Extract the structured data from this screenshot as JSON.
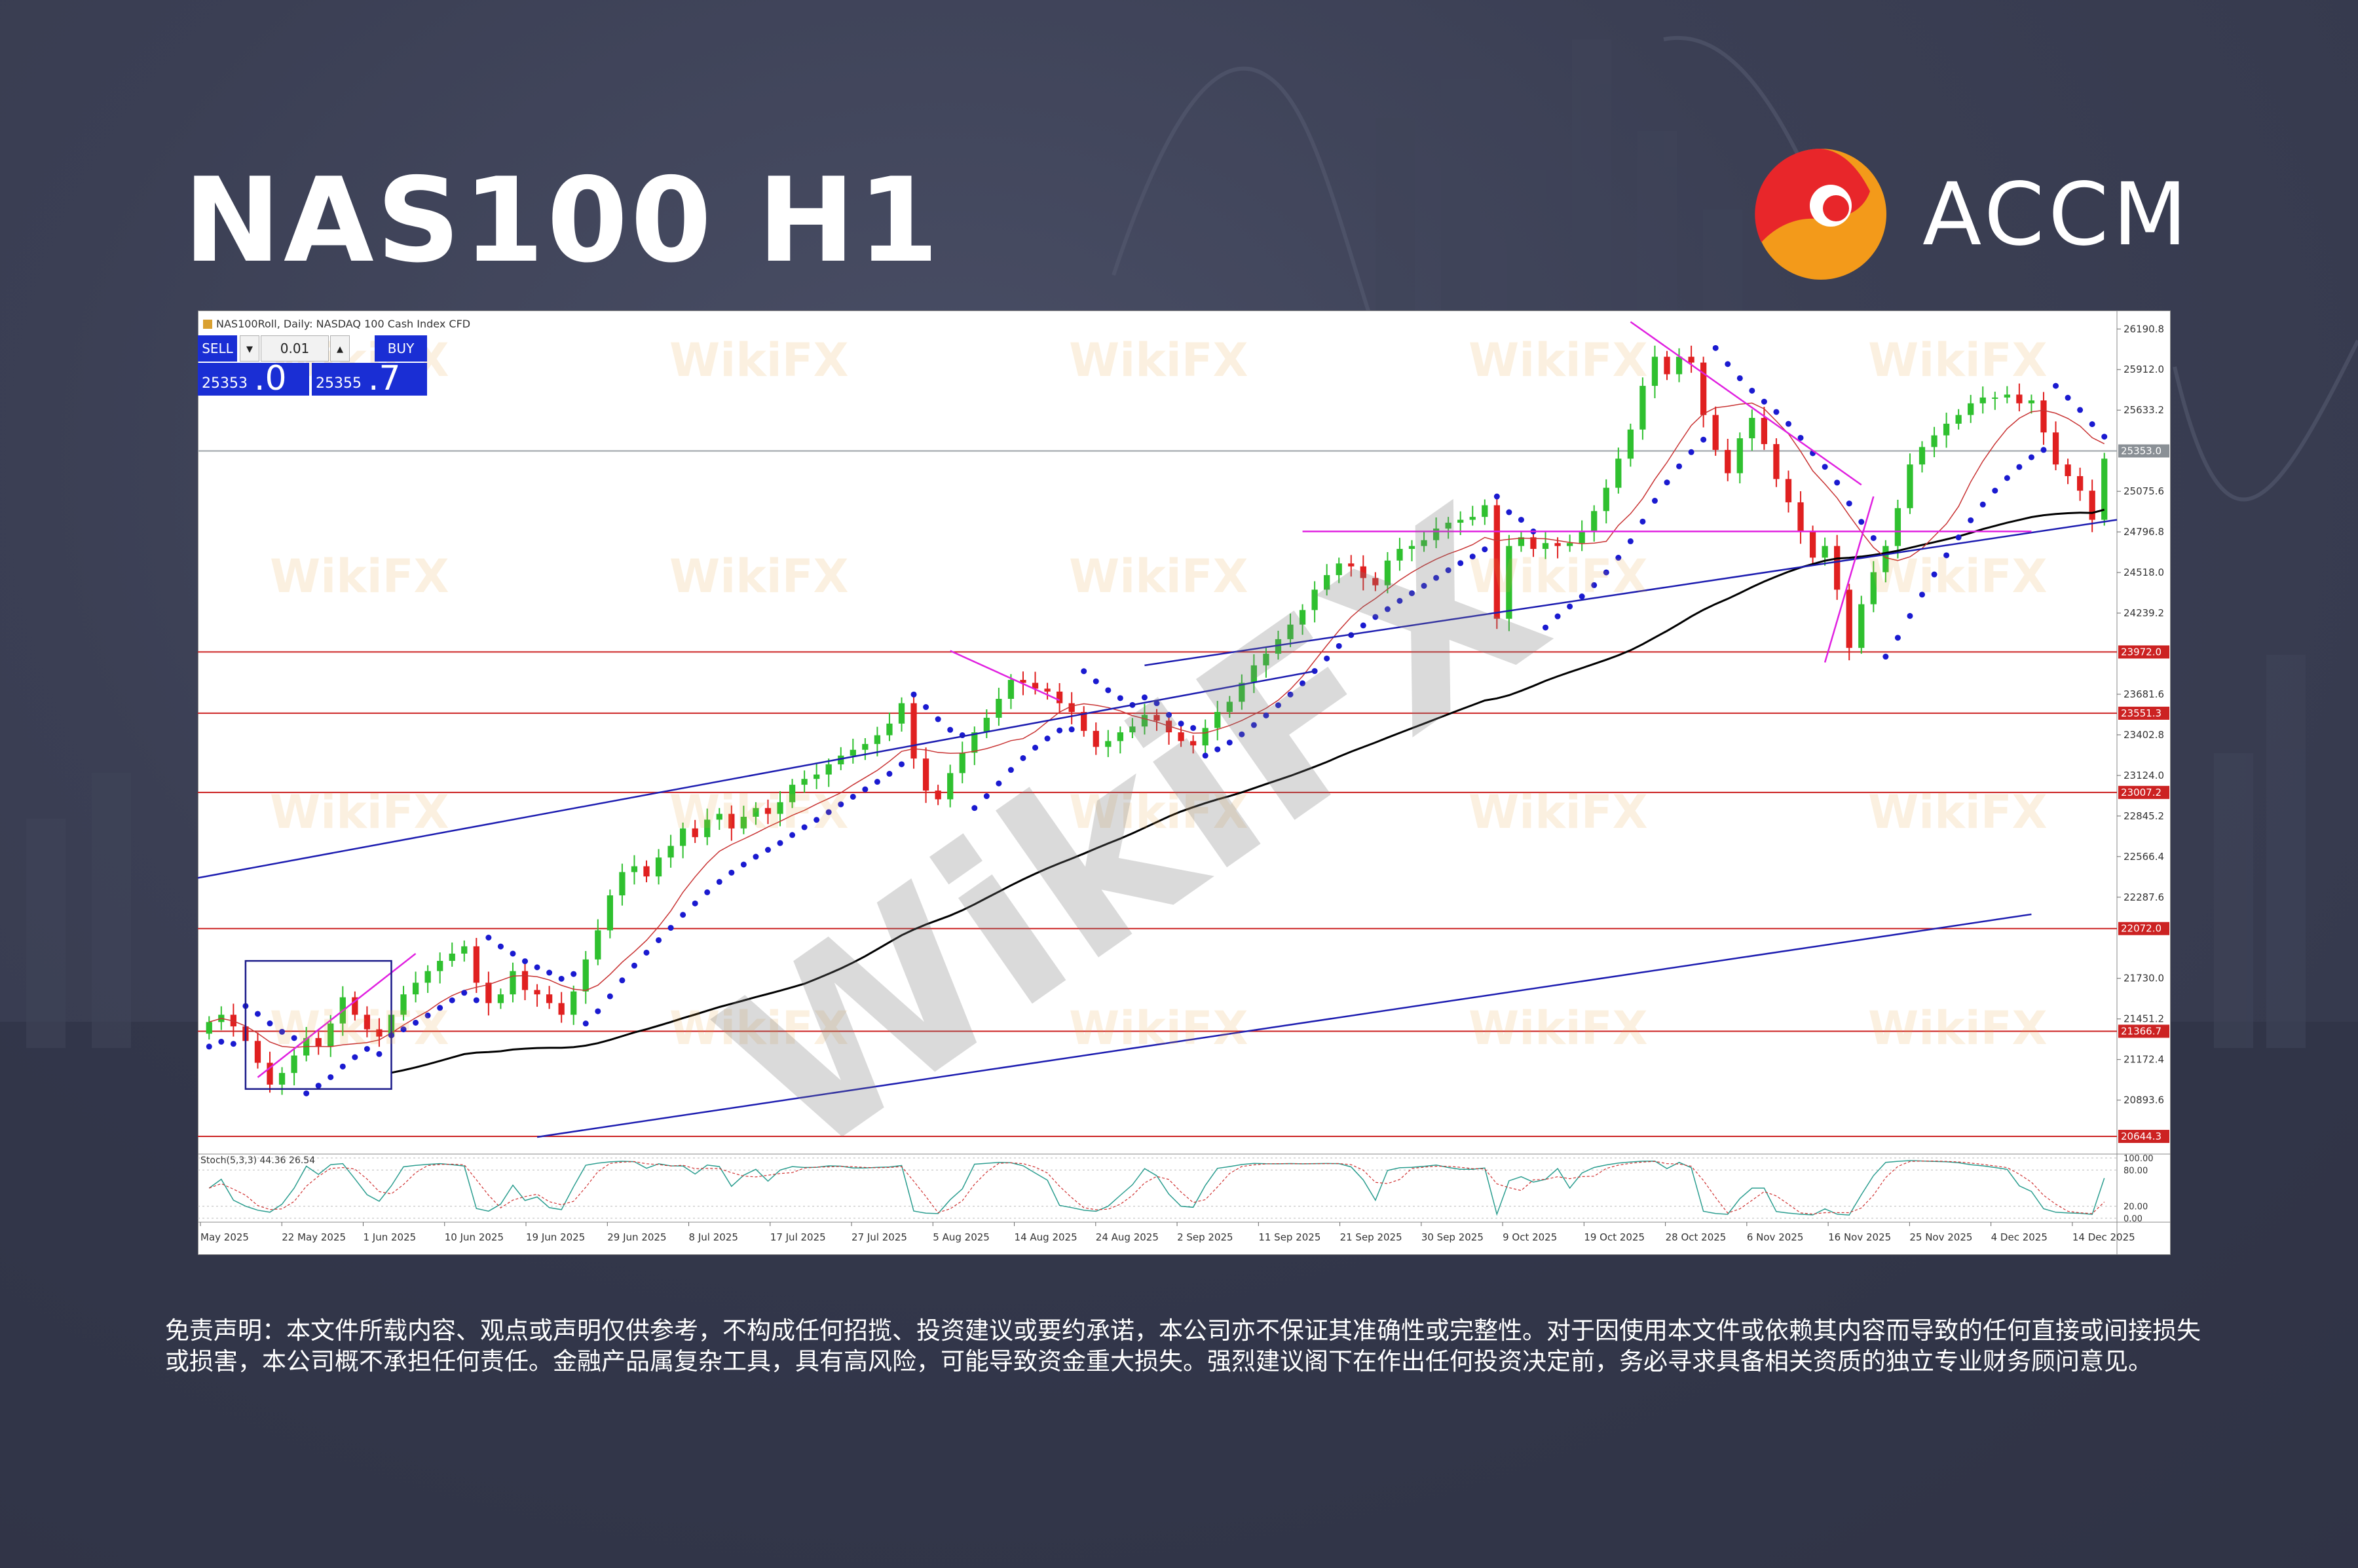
{
  "header": {
    "title": "NAS100 H1",
    "brand": "ACCM"
  },
  "panel": {
    "sell_label": "SELL",
    "buy_label": "BUY",
    "lot": "0.01",
    "sell_small": "25353",
    "sell_big": ".0",
    "buy_small": "25355",
    "buy_big": ".7"
  },
  "disclaimer": "免责声明：本文件所载内容、观点或声明仅供参考，不构成任何招揽、投资建议或要约承诺，本公司亦不保证其准确性或完整性。对于因使用本文件或依赖其内容而导致的任何直接或间接损失或损害，本公司概不承担任何责任。金融产品属复杂工具，具有高风险，可能导致资金重大损失。强烈建议阁下在作出任何投资决定前，务必寻求具备相关资质的独立专业财务顾问意见。",
  "watermark": "WikiFX",
  "colors": {
    "accent_blue": "#1a2ed4",
    "up": "#2fc02f",
    "down": "#e02020",
    "hline": "#cc2222",
    "magenta": "#e020e0",
    "trend": "#1c1cb0"
  },
  "chart_data": {
    "type": "candlestick",
    "header_text": "NAS100Roll, Daily: NASDAQ 100 Cash Index CFD",
    "ylim": [
      20550,
      26300
    ],
    "y_ticks": [
      "26190.8",
      "25912.0",
      "25633.2",
      "25075.6",
      "24796.8",
      "24518.0",
      "24239.2",
      "23681.6",
      "23402.8",
      "23124.0",
      "22845.2",
      "22566.4",
      "22287.6",
      "21730.0",
      "21451.2",
      "21172.4",
      "20893.6"
    ],
    "y_ticks_values": [
      26190.8,
      25912.0,
      25633.2,
      25075.6,
      24796.8,
      24518.0,
      24239.2,
      23681.6,
      23402.8,
      23124.0,
      22845.2,
      22566.4,
      22287.6,
      21730.0,
      21451.2,
      21172.4,
      20893.6
    ],
    "current_price": {
      "label": "25353.0",
      "value": 25353.0
    },
    "horizontal_levels": [
      {
        "label": "23972.0",
        "value": 23972.0
      },
      {
        "label": "23551.3",
        "value": 23551.3
      },
      {
        "label": "23007.2",
        "value": 23007.2
      },
      {
        "label": "22072.0",
        "value": 22072.0
      },
      {
        "label": "21366.7",
        "value": 21366.7
      },
      {
        "label": "20644.3",
        "value": 20644.3
      }
    ],
    "x_labels": [
      "May 2025",
      "22 May 2025",
      "1 Jun 2025",
      "10 Jun 2025",
      "19 Jun 2025",
      "29 Jun 2025",
      "8 Jul 2025",
      "17 Jul 2025",
      "27 Jul 2025",
      "5 Aug 2025",
      "14 Aug 2025",
      "24 Aug 2025",
      "2 Sep 2025",
      "11 Sep 2025",
      "21 Sep 2025",
      "30 Sep 2025",
      "9 Oct 2025",
      "19 Oct 2025",
      "28 Oct 2025",
      "6 Nov 2025",
      "16 Nov 2025",
      "25 Nov 2025",
      "4 Dec 2025",
      "14 Dec 2025"
    ],
    "stoch_label": "Stoch(5,3,3) 44.36 26.54",
    "stoch_ticks": [
      "100.00",
      "80.00",
      "20.00",
      "0.00"
    ],
    "closes": [
      21430,
      21480,
      21400,
      21300,
      21150,
      21000,
      21080,
      21200,
      21320,
      21260,
      21420,
      21600,
      21480,
      21380,
      21330,
      21480,
      21620,
      21700,
      21780,
      21850,
      21900,
      21950,
      21700,
      21560,
      21620,
      21780,
      21650,
      21620,
      21560,
      21480,
      21640,
      21860,
      22060,
      22300,
      22460,
      22500,
      22430,
      22560,
      22640,
      22760,
      22700,
      22820,
      22860,
      22760,
      22840,
      22900,
      22860,
      22940,
      23060,
      23100,
      23130,
      23200,
      23260,
      23300,
      23340,
      23400,
      23480,
      23620,
      23240,
      23020,
      22960,
      23140,
      23280,
      23420,
      23520,
      23650,
      23780,
      23760,
      23720,
      23700,
      23620,
      23560,
      23430,
      23320,
      23360,
      23420,
      23460,
      23540,
      23500,
      23420,
      23360,
      23330,
      23450,
      23560,
      23630,
      23760,
      23880,
      23960,
      24060,
      24160,
      24260,
      24400,
      24500,
      24580,
      24560,
      24480,
      24430,
      24600,
      24680,
      24700,
      24740,
      24820,
      24860,
      24880,
      24900,
      24980,
      24200,
      24700,
      24760,
      24680,
      24720,
      24700,
      24720,
      24800,
      24940,
      25100,
      25300,
      25500,
      25800,
      26000,
      25880,
      26000,
      25960,
      25600,
      25360,
      25200,
      25440,
      25580,
      25400,
      25160,
      25000,
      24800,
      24620,
      24700,
      24400,
      24000,
      24300,
      24520,
      24700,
      24960,
      25260,
      25380,
      25460,
      25540,
      25600,
      25680,
      25720,
      25720,
      25740,
      25680,
      25700,
      25480,
      25260,
      25180,
      25080,
      24880,
      25300
    ]
  }
}
